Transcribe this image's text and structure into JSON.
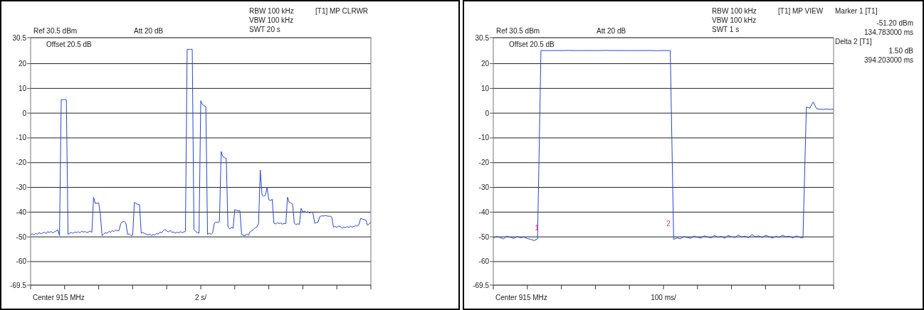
{
  "chart_data": [
    {
      "type": "line",
      "ylim": [
        -69.5,
        30.5
      ],
      "tick_labels": "y",
      "grid": "y",
      "marker": "none",
      "line_style": "solid",
      "categories": [
        null,
        null,
        null,
        null,
        null,
        null,
        null,
        null,
        null,
        null,
        null,
        null,
        null,
        null,
        null,
        null,
        null,
        null,
        null,
        null,
        null,
        null,
        null,
        null,
        null,
        null,
        null,
        null,
        null,
        null,
        null,
        null,
        null,
        null,
        null,
        null,
        null,
        null,
        null,
        null,
        null,
        null,
        null,
        null,
        null,
        null,
        null,
        null,
        null,
        null,
        null,
        null,
        null,
        null,
        null,
        null,
        null,
        null,
        null,
        null,
        null,
        null,
        null,
        null,
        null,
        null,
        null,
        null,
        null,
        null,
        null,
        null,
        null,
        null,
        null,
        null,
        null,
        null,
        null,
        null,
        null,
        null,
        null,
        null,
        null,
        null,
        null,
        null,
        null,
        null,
        null,
        null,
        null,
        null,
        null,
        null,
        null,
        null,
        null,
        null,
        null,
        null,
        null,
        null,
        null,
        null,
        null,
        null,
        null,
        null,
        null,
        null,
        null,
        null,
        null,
        null,
        null,
        null,
        null,
        null,
        null,
        null,
        null,
        null,
        null,
        null,
        null,
        null,
        null,
        null,
        null,
        null,
        null,
        null,
        null,
        null,
        null,
        null,
        null,
        null,
        null,
        null,
        null,
        null,
        null,
        null,
        null,
        null,
        null,
        null,
        null,
        null,
        null,
        null,
        null,
        null,
        null,
        null,
        null,
        null,
        null,
        null,
        null,
        null,
        null,
        null,
        null,
        null,
        null,
        null,
        null,
        null,
        null,
        null,
        null,
        null,
        null,
        null,
        null,
        null,
        null,
        null,
        null,
        null,
        null,
        null,
        null,
        null,
        null,
        null,
        null,
        null,
        null,
        null,
        null,
        null,
        null,
        null,
        null,
        null,
        null
      ],
      "yticks": [
        30.5,
        20,
        10,
        0,
        -10,
        -20,
        -30,
        -40,
        -50,
        -60,
        -69.5
      ],
      "annotations": [
        "Ref 30.5 dBm",
        "Att  20 dB",
        "RBW 100 kHz",
        "VBW 100 kHz",
        "SWT 20 s",
        "[T1] MP CLRWR",
        "Offset 20.5 dB",
        "Center 915 MHz",
        "2 s/"
      ],
      "series": [
        {
          "color": "#2347d8",
          "values": [
            -49,
            -48.8,
            -49.2,
            -48.6,
            -48.9,
            -48.3,
            -48.7,
            -48.5,
            -48.1,
            -48.6,
            -47.9,
            -48.2,
            -47.8,
            -48.4,
            -48,
            -47.6,
            -47.2,
            -49.5,
            5.5,
            5.4,
            5.5,
            5.3,
            -49,
            -48.5,
            -48.2,
            -48.6,
            -48,
            -48.3,
            -47.9,
            -48.4,
            -47.7,
            -48.1,
            -47.8,
            -48.3,
            -48,
            -47.6,
            -48.2,
            -34,
            -36.5,
            -36.4,
            -36.2,
            -41,
            -49.5,
            -48.8,
            -48.3,
            -48.6,
            -47.8,
            -48.1,
            -47.5,
            -47.8,
            -47.2,
            -47.6,
            -47.4,
            -44.6,
            -44,
            -43.7,
            -44.5,
            -49,
            -48.8,
            -49.5,
            -49.3,
            -36,
            -36.6,
            -36.8,
            -37,
            -48.5,
            -48.2,
            -48.7,
            -48.9,
            -49.2,
            -48.8,
            -49.5,
            -49,
            -49.3,
            -48.6,
            -48.9,
            -48.1,
            -48.4,
            -47.5,
            -47,
            -47.6,
            -48,
            -47.4,
            -48.2,
            -48,
            -48.5,
            -48.1,
            -48.4,
            -47.9,
            -48.3,
            -48,
            -47.8,
            25.8,
            25.8,
            25.8,
            25.8,
            -47,
            -47.8,
            -48.3,
            -48.5,
            5,
            3.5,
            3,
            2.6,
            -49,
            -48.5,
            -49,
            -48.4,
            -44.5,
            -44,
            -44.2,
            -43.8,
            -15.5,
            -17.5,
            -18,
            -18.3,
            -46,
            -46.8,
            -46.2,
            -46.5,
            -39,
            -39.2,
            -39.5,
            -39.4,
            -49,
            -49.3,
            -49.6,
            -48.8,
            -49.4,
            -48,
            -47.5,
            -47,
            -46.3,
            -46,
            -44.5,
            -23,
            -33,
            -33.5,
            -33.2,
            -30,
            -35,
            -35.3,
            -34.8,
            -44.5,
            -44.8,
            -44.3,
            -44.6,
            -44.4,
            -44.9,
            -44.5,
            -44.7,
            -34,
            -36,
            -36.3,
            -36.8,
            -44.5,
            -45,
            -44.7,
            -45,
            -38.5,
            -40,
            -39.6,
            -40.2,
            -39.8,
            -40.4,
            -40,
            -40.5,
            -44.5,
            -44.2,
            -44,
            -41.8,
            -41.5,
            -41.6,
            -41.4,
            -41.5,
            -41.7,
            -41.6,
            -42,
            -46,
            -45.8,
            -46.2,
            -45.6,
            -45.8,
            -46.4,
            -46,
            -46.3,
            -45.9,
            -46.2,
            -45.7,
            -46,
            -45.8,
            -45.5,
            -45.6,
            -45,
            -42.5,
            -42.8,
            -43,
            -43.2,
            -45.3,
            -44.8,
            -44
          ]
        }
      ]
    },
    {
      "type": "line",
      "ylim": [
        -69.5,
        30.5
      ],
      "tick_labels": "y",
      "grid": "y",
      "marker": "none",
      "line_style": "solid",
      "categories": [
        null,
        null,
        null,
        null,
        null,
        null,
        null,
        null,
        null,
        null,
        null,
        null,
        null,
        null,
        null,
        null,
        null,
        null,
        null,
        null,
        null,
        null,
        null,
        null,
        null,
        null,
        null,
        null,
        null,
        null,
        null,
        null,
        null,
        null,
        null,
        null,
        null,
        null,
        null,
        null,
        null,
        null,
        null,
        null,
        null,
        null,
        null,
        null,
        null,
        null,
        null,
        null,
        null,
        null,
        null,
        null,
        null,
        null,
        null,
        null,
        null,
        null,
        null,
        null,
        null,
        null,
        null,
        null,
        null,
        null,
        null,
        null,
        null,
        null,
        null,
        null,
        null,
        null,
        null,
        null,
        null,
        null,
        null,
        null,
        null,
        null,
        null,
        null,
        null,
        null,
        null,
        null,
        null,
        null,
        null,
        null,
        null,
        null,
        null,
        null,
        null
      ],
      "yticks": [
        30.5,
        20,
        10,
        0,
        -10,
        -20,
        -30,
        -40,
        -50,
        -60,
        -69.5
      ],
      "annotations": [
        "Ref 30.5 dBm",
        "Att  20 dB",
        "RBW 100 kHz",
        "VBW 100 kHz",
        "SWT 1 s",
        "[T1] MP VIEW",
        "Offset 20.5 dB",
        "Center 915 MHz",
        "100 ms/",
        "Marker 1 [T1]",
        "-51.20 dBm",
        "134.783000 ms",
        "Delta 2 [T1]",
        "1.50 dB",
        "394.203000 ms",
        "1",
        "2"
      ],
      "series": [
        {
          "color": "#2347d8",
          "values": [
            -50.5,
            -49.8,
            -50.3,
            -50.8,
            -49.7,
            -50.2,
            -50.6,
            -49.9,
            -50.4,
            -50.1,
            -50.7,
            -51,
            -51.5,
            -50.8,
            25.3,
            25.3,
            25.3,
            25.3,
            25.3,
            25.3,
            25.3,
            25.3,
            25.4,
            25.3,
            25.3,
            25.3,
            25.3,
            25.3,
            25.3,
            25.3,
            25.3,
            25.3,
            25.3,
            25.4,
            25.3,
            25.3,
            25.3,
            25.3,
            25.3,
            25.3,
            25.3,
            25.3,
            25.3,
            25.3,
            25.3,
            25.3,
            25.3,
            25.3,
            25.2,
            25.3,
            25.3,
            25.3,
            25.3,
            -51,
            -50.4,
            -50.8,
            -49.9,
            -50.3,
            -50.6,
            -49.7,
            -50.2,
            -50.5,
            -49.6,
            -50.1,
            -50.4,
            -49.5,
            -50.2,
            -49.8,
            -50.6,
            -49.4,
            -50,
            -50.3,
            -49.2,
            -50.1,
            -49.7,
            -50.4,
            -49,
            -50,
            -49.6,
            -50.3,
            -49.4,
            -49.9,
            -50.5,
            -49.8,
            -50.2,
            -49.3,
            -50,
            -49.7,
            -50.5,
            -49.6,
            -50.2,
            -50.4,
            2.5,
            2,
            4.5,
            1.8,
            1.6,
            1.5,
            1.7,
            1.5,
            1.6
          ]
        }
      ]
    }
  ]
}
